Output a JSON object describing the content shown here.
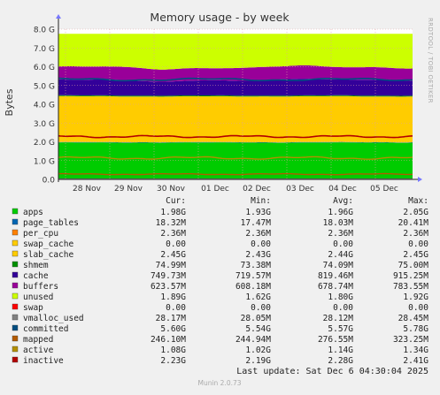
{
  "chart_data": {
    "type": "area",
    "title": "Memory usage - by week",
    "ylabel": "Bytes",
    "ylim": [
      0,
      8.0
    ],
    "y_unit": "G",
    "y_ticks": [
      "0.0",
      "1.0 G",
      "2.0 G",
      "3.0 G",
      "4.0 G",
      "5.0 G",
      "6.0 G",
      "7.0 G",
      "8.0 G"
    ],
    "x_ticks": [
      "28 Nov",
      "29 Nov",
      "30 Nov",
      "01 Dec",
      "02 Dec",
      "03 Dec",
      "04 Dec",
      "05 Dec"
    ],
    "grid": true,
    "stacked": true,
    "side_label": "RRDTOOL / TOBI OETIKER",
    "columns": [
      "Cur:",
      "Min:",
      "Avg:",
      "Max:"
    ],
    "series": [
      {
        "name": "apps",
        "color": "#00cc00",
        "values_g": [
          1.98,
          1.93,
          1.96,
          2.05
        ],
        "cur": "1.98G",
        "min": "1.93G",
        "avg": "1.96G",
        "max": "2.05G"
      },
      {
        "name": "page_tables",
        "color": "#0066b3",
        "values_g": [
          0.018,
          0.017,
          0.018,
          0.02
        ],
        "cur": "18.32M",
        "min": "17.47M",
        "avg": "18.03M",
        "max": "20.41M"
      },
      {
        "name": "per_cpu",
        "color": "#ff8000",
        "values_g": [
          0.0024,
          0.0024,
          0.0024,
          0.0024
        ],
        "cur": "2.36M",
        "min": "2.36M",
        "avg": "2.36M",
        "max": "2.36M"
      },
      {
        "name": "swap_cache",
        "color": "#ffcc00",
        "values_g": [
          0,
          0,
          0,
          0
        ],
        "cur": "0.00",
        "min": "0.00",
        "avg": "0.00",
        "max": "0.00"
      },
      {
        "name": "slab_cache",
        "color": "#ffcc00",
        "values_g": [
          2.45,
          2.43,
          2.44,
          2.45
        ],
        "cur": "2.45G",
        "min": "2.43G",
        "avg": "2.44G",
        "max": "2.45G"
      },
      {
        "name": "shmem",
        "color": "#008f00",
        "values_g": [
          0.075,
          0.073,
          0.074,
          0.075
        ],
        "cur": "74.99M",
        "min": "73.38M",
        "avg": "74.09M",
        "max": "75.00M"
      },
      {
        "name": "cache",
        "color": "#330099",
        "values_g": [
          0.75,
          0.72,
          0.82,
          0.92
        ],
        "cur": "749.73M",
        "min": "719.57M",
        "avg": "819.46M",
        "max": "915.25M"
      },
      {
        "name": "buffers",
        "color": "#990099",
        "values_g": [
          0.62,
          0.61,
          0.68,
          0.78
        ],
        "cur": "623.57M",
        "min": "608.18M",
        "avg": "678.74M",
        "max": "783.55M"
      },
      {
        "name": "unused",
        "color": "#ccff00",
        "values_g": [
          1.89,
          1.62,
          1.8,
          1.92
        ],
        "cur": "1.89G",
        "min": "1.62G",
        "avg": "1.80G",
        "max": "1.92G"
      },
      {
        "name": "swap",
        "color": "#ff0000",
        "values_g": [
          0,
          0,
          0,
          0
        ],
        "cur": "0.00",
        "min": "0.00",
        "avg": "0.00",
        "max": "0.00"
      },
      {
        "name": "vmalloc_used",
        "color": "#808080",
        "values_g": [
          0.028,
          0.028,
          0.028,
          0.028
        ],
        "cur": "28.17M",
        "min": "28.05M",
        "avg": "28.12M",
        "max": "28.45M"
      },
      {
        "name": "committed",
        "color": "#004d80",
        "values_g": [
          5.6,
          5.54,
          5.57,
          5.78
        ],
        "cur": "5.60G",
        "min": "5.54G",
        "avg": "5.57G",
        "max": "5.78G"
      },
      {
        "name": "mapped",
        "color": "#b35a00",
        "values_g": [
          0.246,
          0.245,
          0.277,
          0.323
        ],
        "cur": "246.10M",
        "min": "244.94M",
        "avg": "276.55M",
        "max": "323.25M"
      },
      {
        "name": "active",
        "color": "#b38f00",
        "values_g": [
          1.08,
          1.02,
          1.14,
          1.34
        ],
        "cur": "1.08G",
        "min": "1.02G",
        "avg": "1.14G",
        "max": "1.34G"
      },
      {
        "name": "inactive",
        "color": "#b30000",
        "values_g": [
          2.23,
          2.19,
          2.28,
          2.41
        ],
        "cur": "2.23G",
        "min": "2.19G",
        "avg": "2.28G",
        "max": "2.41G"
      }
    ]
  },
  "footer": {
    "last_update": "Last update: Sat Dec  6 04:30:04 2025",
    "munin": "Munin 2.0.73"
  }
}
